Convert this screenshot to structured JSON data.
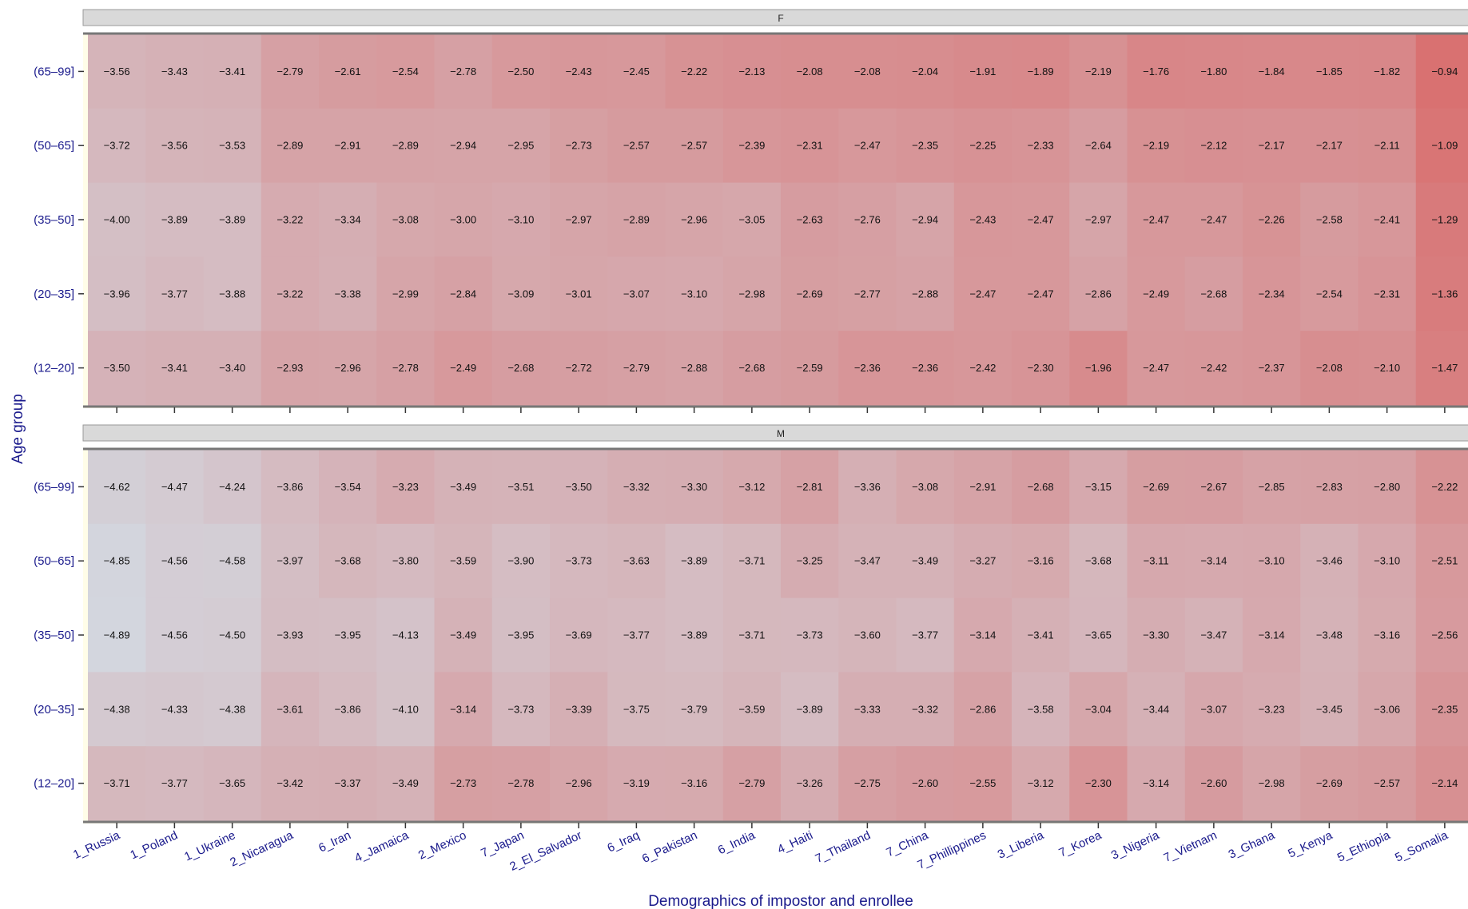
{
  "chart_data": {
    "type": "heatmap",
    "xlabel": "Demographics of impostor and enrollee",
    "ylabel": "Age group",
    "columns": [
      "1_Russia",
      "1_Poland",
      "1_Ukraine",
      "2_Nicaragua",
      "6_Iran",
      "4_Jamaica",
      "2_Mexico",
      "7_Japan",
      "2_El_Salvador",
      "6_Iraq",
      "6_Pakistan",
      "6_India",
      "4_Haiti",
      "7_Thailand",
      "7_China",
      "7_Phillippines",
      "3_Liberia",
      "7_Korea",
      "3_Nigeria",
      "7_Vietnam",
      "3_Ghana",
      "5_Kenya",
      "5_Ethiopia",
      "5_Somalia"
    ],
    "rows": [
      "(65–99]",
      "(50–65]",
      "(35–50]",
      "(20–35]",
      "(12–20]"
    ],
    "color_low": "#d3d6de",
    "color_high": "#d97070",
    "color_min": -4.9,
    "color_max": -0.9,
    "panels": [
      {
        "strip": "F",
        "values": [
          [
            "−3.56",
            "−3.43",
            "−3.41",
            "−2.79",
            "−2.61",
            "−2.54",
            "−2.78",
            "−2.50",
            "−2.43",
            "−2.45",
            "−2.22",
            "−2.13",
            "−2.08",
            "−2.08",
            "−2.04",
            "−1.91",
            "−1.89",
            "−2.19",
            "−1.76",
            "−1.80",
            "−1.84",
            "−1.85",
            "−1.82",
            "−0.94"
          ],
          [
            "−3.72",
            "−3.56",
            "−3.53",
            "−2.89",
            "−2.91",
            "−2.89",
            "−2.94",
            "−2.95",
            "−2.73",
            "−2.57",
            "−2.57",
            "−2.39",
            "−2.31",
            "−2.47",
            "−2.35",
            "−2.25",
            "−2.33",
            "−2.64",
            "−2.19",
            "−2.12",
            "−2.17",
            "−2.17",
            "−2.11",
            "−1.09"
          ],
          [
            "−4.00",
            "−3.89",
            "−3.89",
            "−3.22",
            "−3.34",
            "−3.08",
            "−3.00",
            "−3.10",
            "−2.97",
            "−2.89",
            "−2.96",
            "−3.05",
            "−2.63",
            "−2.76",
            "−2.94",
            "−2.43",
            "−2.47",
            "−2.97",
            "−2.47",
            "−2.47",
            "−2.26",
            "−2.58",
            "−2.41",
            "−1.29"
          ],
          [
            "−3.96",
            "−3.77",
            "−3.88",
            "−3.22",
            "−3.38",
            "−2.99",
            "−2.84",
            "−3.09",
            "−3.01",
            "−3.07",
            "−3.10",
            "−2.98",
            "−2.69",
            "−2.77",
            "−2.88",
            "−2.47",
            "−2.47",
            "−2.86",
            "−2.49",
            "−2.68",
            "−2.34",
            "−2.54",
            "−2.31",
            "−1.36"
          ],
          [
            "−3.50",
            "−3.41",
            "−3.40",
            "−2.93",
            "−2.96",
            "−2.78",
            "−2.49",
            "−2.68",
            "−2.72",
            "−2.79",
            "−2.88",
            "−2.68",
            "−2.59",
            "−2.36",
            "−2.36",
            "−2.42",
            "−2.30",
            "−1.96",
            "−2.47",
            "−2.42",
            "−2.37",
            "−2.08",
            "−2.10",
            "−1.47"
          ]
        ]
      },
      {
        "strip": "M",
        "values": [
          [
            "−4.62",
            "−4.47",
            "−4.24",
            "−3.86",
            "−3.54",
            "−3.23",
            "−3.49",
            "−3.51",
            "−3.50",
            "−3.32",
            "−3.30",
            "−3.12",
            "−2.81",
            "−3.36",
            "−3.08",
            "−2.91",
            "−2.68",
            "−3.15",
            "−2.69",
            "−2.67",
            "−2.85",
            "−2.83",
            "−2.80",
            "−2.22"
          ],
          [
            "−4.85",
            "−4.56",
            "−4.58",
            "−3.97",
            "−3.68",
            "−3.80",
            "−3.59",
            "−3.90",
            "−3.73",
            "−3.63",
            "−3.89",
            "−3.71",
            "−3.25",
            "−3.47",
            "−3.49",
            "−3.27",
            "−3.16",
            "−3.68",
            "−3.11",
            "−3.14",
            "−3.10",
            "−3.46",
            "−3.10",
            "−2.51"
          ],
          [
            "−4.89",
            "−4.56",
            "−4.50",
            "−3.93",
            "−3.95",
            "−4.13",
            "−3.49",
            "−3.95",
            "−3.69",
            "−3.77",
            "−3.89",
            "−3.71",
            "−3.73",
            "−3.60",
            "−3.77",
            "−3.14",
            "−3.41",
            "−3.65",
            "−3.30",
            "−3.47",
            "−3.14",
            "−3.48",
            "−3.16",
            "−2.56"
          ],
          [
            "−4.38",
            "−4.33",
            "−4.38",
            "−3.61",
            "−3.86",
            "−4.10",
            "−3.14",
            "−3.73",
            "−3.39",
            "−3.75",
            "−3.79",
            "−3.59",
            "−3.89",
            "−3.33",
            "−3.32",
            "−2.86",
            "−3.58",
            "−3.04",
            "−3.44",
            "−3.07",
            "−3.23",
            "−3.45",
            "−3.06",
            "−2.35"
          ],
          [
            "−3.71",
            "−3.77",
            "−3.65",
            "−3.42",
            "−3.37",
            "−3.49",
            "−2.73",
            "−2.78",
            "−2.96",
            "−3.19",
            "−3.16",
            "−2.79",
            "−3.26",
            "−2.75",
            "−2.60",
            "−2.55",
            "−3.12",
            "−2.30",
            "−3.14",
            "−2.60",
            "−2.98",
            "−2.69",
            "−2.57",
            "−2.14"
          ]
        ]
      }
    ]
  }
}
